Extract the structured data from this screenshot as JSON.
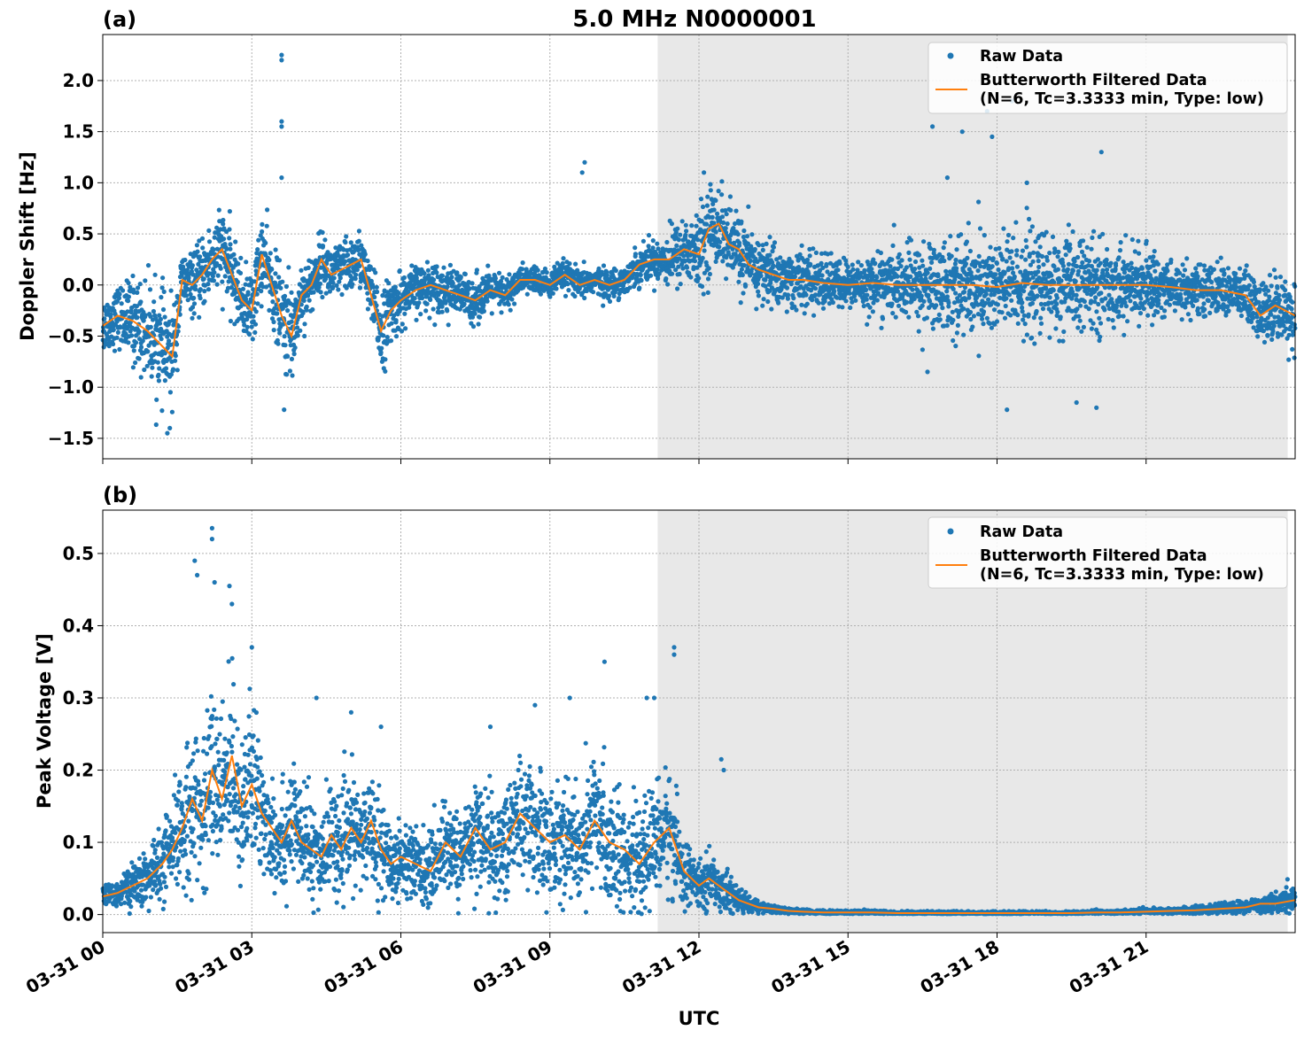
{
  "figure": {
    "title": "5.0 MHz N0000001",
    "xlabel": "UTC"
  },
  "colors": {
    "raw": "#1f77b4",
    "filtered": "#ff7f0e",
    "night_shade": "#e8e8e8",
    "grid": "#b0b0b0"
  },
  "legend": {
    "raw_label": "Raw Data",
    "filtered_label_line1": "Butterworth Filtered Data",
    "filtered_label_line2": "(N=6, Tc=3.3333 min, Type: low)"
  },
  "x_axis": {
    "unit": "hours UTC",
    "range": [
      0,
      24
    ],
    "ticks": [
      0,
      3,
      6,
      9,
      12,
      15,
      18,
      21
    ],
    "tick_labels": [
      "03-31 00",
      "03-31 03",
      "03-31 06",
      "03-31 09",
      "03-31 12",
      "03-31 15",
      "03-31 18",
      "03-31 21"
    ],
    "shaded_interval": [
      11.17,
      23.85
    ]
  },
  "chart_data": [
    {
      "type": "scatter",
      "panel_label": "(a)",
      "ylabel": "Doppler Shift [Hz]",
      "ylim": [
        -1.7,
        2.45
      ],
      "yticks": [
        -1.5,
        -1.0,
        -0.5,
        0.0,
        0.5,
        1.0,
        1.5,
        2.0
      ],
      "ytick_labels": [
        "−1.5",
        "−1.0",
        "−0.5",
        "0.0",
        "0.5",
        "1.0",
        "1.5",
        "2.0"
      ],
      "grid": true,
      "legend_position": "upper-right",
      "series": [
        {
          "name": "Butterworth Filtered Data",
          "style": "line",
          "x": [
            0.0,
            0.3,
            0.6,
            0.9,
            1.2,
            1.4,
            1.6,
            1.8,
            2.0,
            2.2,
            2.4,
            2.6,
            2.8,
            3.0,
            3.2,
            3.4,
            3.6,
            3.8,
            4.0,
            4.2,
            4.4,
            4.6,
            4.8,
            5.0,
            5.2,
            5.4,
            5.6,
            5.8,
            6.0,
            6.3,
            6.6,
            6.9,
            7.2,
            7.5,
            7.8,
            8.1,
            8.4,
            8.7,
            9.0,
            9.3,
            9.6,
            9.9,
            10.2,
            10.5,
            10.8,
            11.1,
            11.4,
            11.7,
            12.0,
            12.2,
            12.4,
            12.6,
            12.8,
            13.0,
            13.2,
            13.5,
            13.8,
            14.1,
            14.5,
            15.0,
            15.5,
            16.0,
            16.5,
            17.0,
            17.5,
            18.0,
            18.5,
            19.0,
            19.5,
            20.0,
            20.5,
            21.0,
            21.5,
            22.0,
            22.5,
            23.0,
            23.3,
            23.6,
            24.0
          ],
          "y": [
            -0.4,
            -0.3,
            -0.35,
            -0.45,
            -0.6,
            -0.7,
            0.05,
            0.0,
            0.1,
            0.25,
            0.35,
            0.1,
            -0.15,
            -0.25,
            0.3,
            0.0,
            -0.3,
            -0.5,
            -0.1,
            0.0,
            0.25,
            0.1,
            0.15,
            0.2,
            0.25,
            -0.1,
            -0.45,
            -0.25,
            -0.15,
            -0.05,
            0.0,
            -0.05,
            -0.1,
            -0.15,
            -0.05,
            -0.1,
            0.05,
            0.05,
            0.0,
            0.1,
            0.0,
            0.05,
            0.0,
            0.05,
            0.2,
            0.25,
            0.25,
            0.35,
            0.3,
            0.55,
            0.6,
            0.4,
            0.35,
            0.2,
            0.15,
            0.1,
            0.05,
            0.05,
            0.02,
            0.0,
            0.02,
            0.0,
            0.0,
            0.0,
            0.0,
            -0.02,
            0.02,
            0.0,
            0.0,
            0.0,
            0.0,
            0.0,
            -0.02,
            -0.05,
            -0.05,
            -0.1,
            -0.3,
            -0.2,
            -0.3
          ]
        },
        {
          "name": "Raw Data",
          "style": "points",
          "x": [
            0.0,
            0.3,
            0.6,
            0.9,
            1.2,
            1.4,
            1.6,
            1.8,
            2.0,
            2.2,
            2.4,
            2.6,
            2.8,
            3.0,
            3.2,
            3.4,
            3.6,
            3.8,
            4.0,
            4.2,
            4.4,
            4.6,
            4.8,
            5.0,
            5.2,
            5.4,
            5.6,
            5.8,
            6.0,
            6.3,
            6.6,
            6.9,
            7.2,
            7.5,
            7.8,
            8.1,
            8.4,
            8.7,
            9.0,
            9.3,
            9.6,
            9.9,
            10.2,
            10.5,
            10.8,
            11.1,
            11.4,
            11.7,
            12.0,
            12.2,
            12.4,
            12.6,
            12.8,
            13.0,
            13.2,
            13.5,
            13.8,
            14.1,
            14.5,
            15.0,
            15.5,
            16.0,
            16.5,
            17.0,
            17.5,
            18.0,
            18.5,
            19.0,
            19.5,
            20.0,
            20.5,
            21.0,
            21.5,
            22.0,
            22.5,
            23.0,
            23.3,
            23.6,
            24.0
          ],
          "y_center": [
            -0.4,
            -0.3,
            -0.35,
            -0.45,
            -0.6,
            -0.7,
            0.05,
            0.0,
            0.1,
            0.25,
            0.35,
            0.1,
            -0.15,
            -0.25,
            0.3,
            0.0,
            -0.3,
            -0.5,
            -0.1,
            0.0,
            0.25,
            0.1,
            0.15,
            0.2,
            0.25,
            -0.1,
            -0.45,
            -0.25,
            -0.15,
            -0.05,
            0.0,
            -0.05,
            -0.1,
            -0.15,
            -0.05,
            -0.1,
            0.05,
            0.05,
            0.0,
            0.1,
            0.0,
            0.05,
            0.0,
            0.05,
            0.2,
            0.25,
            0.25,
            0.35,
            0.3,
            0.55,
            0.6,
            0.4,
            0.35,
            0.2,
            0.15,
            0.1,
            0.05,
            0.05,
            0.02,
            0.0,
            0.02,
            0.0,
            0.0,
            0.0,
            0.0,
            -0.02,
            0.02,
            0.0,
            0.0,
            0.0,
            0.0,
            0.0,
            -0.02,
            -0.05,
            -0.05,
            -0.1,
            -0.3,
            -0.2,
            -0.3
          ],
          "spread": [
            0.3,
            0.3,
            0.45,
            0.5,
            0.55,
            0.5,
            0.3,
            0.3,
            0.35,
            0.4,
            0.45,
            0.4,
            0.35,
            0.4,
            0.45,
            0.4,
            0.5,
            0.55,
            0.35,
            0.3,
            0.3,
            0.3,
            0.3,
            0.3,
            0.3,
            0.3,
            0.45,
            0.35,
            0.3,
            0.25,
            0.25,
            0.25,
            0.25,
            0.25,
            0.2,
            0.2,
            0.15,
            0.15,
            0.15,
            0.15,
            0.15,
            0.15,
            0.15,
            0.15,
            0.2,
            0.2,
            0.3,
            0.35,
            0.4,
            0.45,
            0.45,
            0.4,
            0.4,
            0.35,
            0.35,
            0.35,
            0.3,
            0.3,
            0.3,
            0.25,
            0.3,
            0.35,
            0.45,
            0.5,
            0.55,
            0.55,
            0.55,
            0.55,
            0.5,
            0.45,
            0.4,
            0.35,
            0.3,
            0.25,
            0.25,
            0.3,
            0.35,
            0.35,
            0.35
          ],
          "outliers": [
            [
              3.6,
              2.25
            ],
            [
              3.6,
              2.2
            ],
            [
              3.6,
              1.6
            ],
            [
              3.6,
              1.55
            ],
            [
              3.6,
              1.05
            ],
            [
              3.65,
              -1.22
            ],
            [
              9.7,
              1.2
            ],
            [
              9.65,
              1.1
            ],
            [
              1.3,
              -1.45
            ],
            [
              1.35,
              -1.4
            ],
            [
              12.1,
              1.1
            ],
            [
              16.7,
              1.55
            ],
            [
              17.3,
              1.5
            ],
            [
              17.8,
              1.7
            ],
            [
              17.9,
              1.45
            ],
            [
              18.2,
              -1.22
            ],
            [
              20.1,
              1.3
            ],
            [
              20.0,
              -1.2
            ],
            [
              19.6,
              -1.15
            ],
            [
              18.3,
              1.8
            ],
            [
              18.6,
              1.0
            ],
            [
              17.0,
              1.05
            ],
            [
              16.6,
              -0.85
            ]
          ]
        }
      ]
    },
    {
      "type": "scatter",
      "panel_label": "(b)",
      "ylabel": "Peak Voltage [V]",
      "ylim": [
        -0.025,
        0.56
      ],
      "yticks": [
        0.0,
        0.1,
        0.2,
        0.3,
        0.4,
        0.5
      ],
      "ytick_labels": [
        "0.0",
        "0.1",
        "0.2",
        "0.3",
        "0.4",
        "0.5"
      ],
      "grid": true,
      "legend_position": "upper-right",
      "series": [
        {
          "name": "Butterworth Filtered Data",
          "style": "line",
          "x": [
            0.0,
            0.3,
            0.6,
            0.9,
            1.2,
            1.4,
            1.6,
            1.8,
            2.0,
            2.2,
            2.4,
            2.6,
            2.8,
            3.0,
            3.2,
            3.4,
            3.6,
            3.8,
            4.0,
            4.2,
            4.4,
            4.6,
            4.8,
            5.0,
            5.2,
            5.4,
            5.6,
            5.8,
            6.0,
            6.3,
            6.6,
            6.9,
            7.2,
            7.5,
            7.8,
            8.1,
            8.4,
            8.7,
            9.0,
            9.3,
            9.6,
            9.9,
            10.2,
            10.5,
            10.8,
            11.1,
            11.4,
            11.7,
            12.0,
            12.2,
            12.4,
            12.6,
            12.8,
            13.0,
            13.2,
            13.5,
            13.8,
            14.1,
            14.5,
            15.0,
            15.5,
            16.0,
            16.5,
            17.0,
            17.5,
            18.0,
            18.5,
            19.0,
            19.5,
            20.0,
            20.5,
            21.0,
            21.5,
            22.0,
            22.5,
            23.0,
            23.3,
            23.6,
            24.0
          ],
          "y": [
            0.025,
            0.03,
            0.04,
            0.05,
            0.07,
            0.09,
            0.12,
            0.16,
            0.13,
            0.2,
            0.16,
            0.22,
            0.15,
            0.18,
            0.14,
            0.12,
            0.1,
            0.13,
            0.1,
            0.09,
            0.08,
            0.11,
            0.09,
            0.12,
            0.1,
            0.13,
            0.09,
            0.07,
            0.08,
            0.07,
            0.06,
            0.1,
            0.08,
            0.12,
            0.09,
            0.1,
            0.14,
            0.12,
            0.1,
            0.11,
            0.09,
            0.13,
            0.1,
            0.09,
            0.07,
            0.1,
            0.12,
            0.06,
            0.04,
            0.05,
            0.04,
            0.03,
            0.02,
            0.015,
            0.01,
            0.008,
            0.005,
            0.004,
            0.003,
            0.003,
            0.003,
            0.002,
            0.002,
            0.002,
            0.002,
            0.002,
            0.002,
            0.002,
            0.002,
            0.003,
            0.003,
            0.004,
            0.005,
            0.006,
            0.008,
            0.01,
            0.015,
            0.015,
            0.02
          ]
        },
        {
          "name": "Raw Data",
          "style": "points",
          "x": [
            0.0,
            0.3,
            0.6,
            0.9,
            1.2,
            1.4,
            1.6,
            1.8,
            2.0,
            2.2,
            2.4,
            2.6,
            2.8,
            3.0,
            3.2,
            3.4,
            3.6,
            3.8,
            4.0,
            4.2,
            4.4,
            4.6,
            4.8,
            5.0,
            5.2,
            5.4,
            5.6,
            5.8,
            6.0,
            6.3,
            6.6,
            6.9,
            7.2,
            7.5,
            7.8,
            8.1,
            8.4,
            8.7,
            9.0,
            9.3,
            9.6,
            9.9,
            10.2,
            10.5,
            10.8,
            11.1,
            11.4,
            11.7,
            12.0,
            12.2,
            12.4,
            12.6,
            12.8,
            13.0,
            13.2,
            13.5,
            13.8,
            14.1,
            14.5,
            15.0,
            15.5,
            16.0,
            16.5,
            17.0,
            17.5,
            18.0,
            18.5,
            19.0,
            19.5,
            20.0,
            20.5,
            21.0,
            21.5,
            22.0,
            22.5,
            23.0,
            23.3,
            23.6,
            24.0
          ],
          "y_center": [
            0.025,
            0.03,
            0.04,
            0.05,
            0.07,
            0.09,
            0.12,
            0.16,
            0.13,
            0.2,
            0.16,
            0.22,
            0.15,
            0.18,
            0.14,
            0.12,
            0.1,
            0.13,
            0.1,
            0.09,
            0.08,
            0.11,
            0.09,
            0.12,
            0.1,
            0.13,
            0.09,
            0.07,
            0.08,
            0.07,
            0.06,
            0.1,
            0.08,
            0.12,
            0.09,
            0.1,
            0.14,
            0.12,
            0.1,
            0.11,
            0.09,
            0.13,
            0.1,
            0.09,
            0.07,
            0.1,
            0.12,
            0.06,
            0.04,
            0.05,
            0.04,
            0.03,
            0.02,
            0.015,
            0.01,
            0.008,
            0.005,
            0.004,
            0.003,
            0.003,
            0.003,
            0.002,
            0.002,
            0.002,
            0.002,
            0.002,
            0.002,
            0.002,
            0.002,
            0.003,
            0.003,
            0.004,
            0.005,
            0.006,
            0.008,
            0.01,
            0.015,
            0.015,
            0.02
          ],
          "spread": [
            0.015,
            0.02,
            0.03,
            0.04,
            0.06,
            0.07,
            0.09,
            0.12,
            0.1,
            0.13,
            0.12,
            0.14,
            0.11,
            0.12,
            0.1,
            0.09,
            0.08,
            0.09,
            0.08,
            0.07,
            0.07,
            0.08,
            0.07,
            0.08,
            0.07,
            0.08,
            0.07,
            0.06,
            0.06,
            0.06,
            0.05,
            0.07,
            0.06,
            0.08,
            0.07,
            0.08,
            0.09,
            0.09,
            0.08,
            0.09,
            0.08,
            0.1,
            0.09,
            0.08,
            0.07,
            0.08,
            0.09,
            0.05,
            0.03,
            0.04,
            0.035,
            0.03,
            0.02,
            0.012,
            0.008,
            0.006,
            0.004,
            0.003,
            0.003,
            0.003,
            0.003,
            0.002,
            0.002,
            0.002,
            0.002,
            0.002,
            0.002,
            0.002,
            0.002,
            0.003,
            0.003,
            0.004,
            0.005,
            0.006,
            0.008,
            0.01,
            0.012,
            0.015,
            0.02
          ],
          "outliers": [
            [
              2.2,
              0.535
            ],
            [
              2.2,
              0.52
            ],
            [
              1.85,
              0.49
            ],
            [
              1.9,
              0.47
            ],
            [
              2.25,
              0.46
            ],
            [
              2.55,
              0.455
            ],
            [
              2.6,
              0.43
            ],
            [
              3.0,
              0.37
            ],
            [
              4.3,
              0.3
            ],
            [
              5.0,
              0.28
            ],
            [
              5.6,
              0.26
            ],
            [
              10.1,
              0.35
            ],
            [
              11.5,
              0.37
            ],
            [
              11.5,
              0.36
            ],
            [
              12.45,
              0.215
            ],
            [
              12.5,
              0.2
            ],
            [
              8.7,
              0.29
            ],
            [
              7.8,
              0.26
            ],
            [
              9.4,
              0.3
            ],
            [
              11.1,
              0.3
            ],
            [
              10.95,
              0.3
            ]
          ]
        }
      ]
    }
  ]
}
